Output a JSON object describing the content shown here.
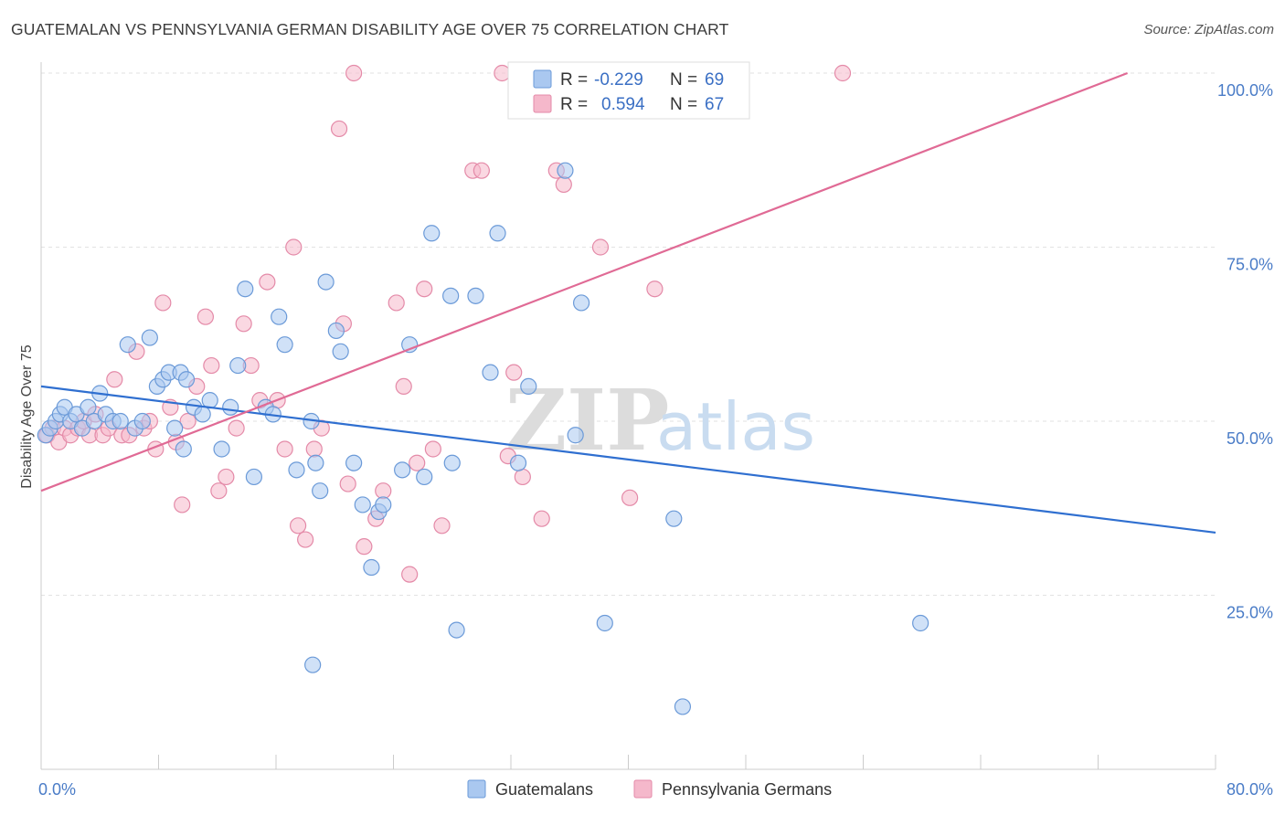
{
  "header": {
    "title": "GUATEMALAN VS PENNSYLVANIA GERMAN DISABILITY AGE OVER 75 CORRELATION CHART",
    "source": "Source: ZipAtlas.com"
  },
  "legend_top": {
    "rows": [
      {
        "r_label": "R =",
        "r_value": "-0.229",
        "n_label": "N =",
        "n_value": "69"
      },
      {
        "r_label": "R =",
        "r_value": "0.594",
        "n_label": "N =",
        "n_value": "67"
      }
    ]
  },
  "legend_bottom": {
    "items": [
      "Guatemalans",
      "Pennsylvania Germans"
    ]
  },
  "watermark": {
    "zip": "ZIP",
    "atlas": "atlas"
  },
  "colors": {
    "blue_fill": "#aac8f0",
    "blue_stroke": "#6b9ad8",
    "blue_line": "#2f6fd0",
    "pink_fill": "#f5b8cb",
    "pink_stroke": "#e48aa8",
    "pink_line": "#e06a95",
    "tick_text": "#4a7cc7",
    "grid": "#e2e2e2"
  },
  "chart_data": {
    "type": "scatter",
    "ylabel": "Disability Age Over 75",
    "xlim": [
      0,
      80
    ],
    "ylim": [
      0,
      100
    ],
    "x_ticks": [
      "0.0%",
      "80.0%"
    ],
    "y_ticks": [
      {
        "value": 25,
        "label": "25.0%"
      },
      {
        "value": 50,
        "label": "50.0%"
      },
      {
        "value": 75,
        "label": "75.0%"
      },
      {
        "value": 100,
        "label": "100.0%"
      }
    ],
    "series": [
      {
        "name": "Guatemalans",
        "r": -0.229,
        "n": 69,
        "trend": {
          "x0": 0,
          "y0": 55,
          "x1": 80,
          "y1": 34
        },
        "points": [
          [
            0.3,
            48
          ],
          [
            0.6,
            49
          ],
          [
            1.0,
            50
          ],
          [
            1.3,
            51
          ],
          [
            1.6,
            52
          ],
          [
            2.0,
            50
          ],
          [
            2.4,
            51
          ],
          [
            2.8,
            49
          ],
          [
            3.2,
            52
          ],
          [
            3.6,
            50
          ],
          [
            4.0,
            54
          ],
          [
            4.4,
            51
          ],
          [
            4.9,
            50
          ],
          [
            5.4,
            50
          ],
          [
            5.9,
            61
          ],
          [
            6.4,
            49
          ],
          [
            6.9,
            50
          ],
          [
            7.4,
            62
          ],
          [
            7.9,
            55
          ],
          [
            8.3,
            56
          ],
          [
            8.7,
            57
          ],
          [
            9.1,
            49
          ],
          [
            9.5,
            57
          ],
          [
            9.9,
            56
          ],
          [
            10.4,
            52
          ],
          [
            11.0,
            51
          ],
          [
            11.5,
            53
          ],
          [
            12.3,
            46
          ],
          [
            12.9,
            52
          ],
          [
            13.4,
            58
          ],
          [
            13.9,
            69
          ],
          [
            14.5,
            42
          ],
          [
            15.3,
            52
          ],
          [
            15.8,
            51
          ],
          [
            16.2,
            65
          ],
          [
            16.6,
            61
          ],
          [
            17.4,
            43
          ],
          [
            18.4,
            50
          ],
          [
            18.7,
            44
          ],
          [
            19.0,
            40
          ],
          [
            19.4,
            70
          ],
          [
            20.1,
            63
          ],
          [
            20.4,
            60
          ],
          [
            21.3,
            44
          ],
          [
            21.9,
            38
          ],
          [
            22.5,
            29
          ],
          [
            23.0,
            37
          ],
          [
            23.3,
            38
          ],
          [
            24.6,
            43
          ],
          [
            25.1,
            61
          ],
          [
            26.1,
            42
          ],
          [
            26.6,
            77
          ],
          [
            27.9,
            68
          ],
          [
            28.3,
            20
          ],
          [
            29.6,
            68
          ],
          [
            30.6,
            57
          ],
          [
            31.1,
            77
          ],
          [
            32.5,
            44
          ],
          [
            33.2,
            55
          ],
          [
            35.7,
            86
          ],
          [
            36.4,
            48
          ],
          [
            36.8,
            67
          ],
          [
            38.4,
            21
          ],
          [
            43.1,
            36
          ],
          [
            43.7,
            9
          ],
          [
            59.9,
            21
          ],
          [
            18.5,
            15
          ],
          [
            28.0,
            44
          ],
          [
            9.7,
            46
          ]
        ]
      },
      {
        "name": "Pennsylvania Germans",
        "r": 0.594,
        "n": 67,
        "trend": {
          "x0": 0,
          "y0": 40,
          "x1": 74,
          "y1": 100
        },
        "points": [
          [
            0.4,
            48
          ],
          [
            0.8,
            49
          ],
          [
            1.2,
            47
          ],
          [
            1.6,
            49
          ],
          [
            2.0,
            48
          ],
          [
            2.5,
            49
          ],
          [
            2.9,
            50
          ],
          [
            3.3,
            48
          ],
          [
            3.7,
            51
          ],
          [
            4.2,
            48
          ],
          [
            4.6,
            49
          ],
          [
            5.0,
            56
          ],
          [
            5.5,
            48
          ],
          [
            6.0,
            48
          ],
          [
            6.5,
            60
          ],
          [
            7.0,
            49
          ],
          [
            7.4,
            50
          ],
          [
            7.8,
            46
          ],
          [
            8.3,
            67
          ],
          [
            8.8,
            52
          ],
          [
            9.2,
            47
          ],
          [
            9.6,
            38
          ],
          [
            10.0,
            50
          ],
          [
            10.6,
            55
          ],
          [
            11.2,
            65
          ],
          [
            11.6,
            58
          ],
          [
            12.1,
            40
          ],
          [
            12.6,
            42
          ],
          [
            13.3,
            49
          ],
          [
            13.8,
            64
          ],
          [
            14.3,
            58
          ],
          [
            14.9,
            53
          ],
          [
            15.4,
            70
          ],
          [
            16.1,
            53
          ],
          [
            16.6,
            46
          ],
          [
            17.2,
            75
          ],
          [
            17.5,
            35
          ],
          [
            18.0,
            33
          ],
          [
            18.6,
            46
          ],
          [
            19.1,
            49
          ],
          [
            20.3,
            92
          ],
          [
            20.6,
            64
          ],
          [
            20.9,
            41
          ],
          [
            21.3,
            100
          ],
          [
            22.0,
            32
          ],
          [
            22.8,
            36
          ],
          [
            23.3,
            40
          ],
          [
            24.2,
            67
          ],
          [
            24.7,
            55
          ],
          [
            25.1,
            28
          ],
          [
            25.6,
            44
          ],
          [
            26.1,
            69
          ],
          [
            26.7,
            46
          ],
          [
            27.3,
            35
          ],
          [
            29.4,
            86
          ],
          [
            30.0,
            86
          ],
          [
            31.4,
            100
          ],
          [
            31.8,
            45
          ],
          [
            32.2,
            57
          ],
          [
            32.8,
            42
          ],
          [
            34.1,
            36
          ],
          [
            35.1,
            86
          ],
          [
            35.6,
            84
          ],
          [
            38.1,
            75
          ],
          [
            40.1,
            39
          ],
          [
            41.8,
            69
          ],
          [
            54.6,
            100
          ]
        ]
      }
    ]
  }
}
